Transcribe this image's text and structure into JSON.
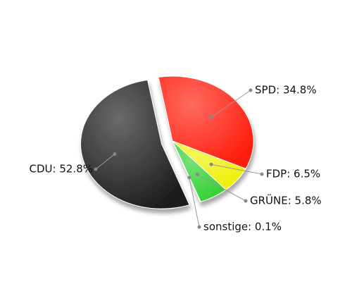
{
  "chart_data": {
    "type": "pie",
    "values": [
      34.8,
      6.5,
      5.8,
      0.1,
      52.8
    ],
    "value_labels": [
      "SPD: 34.8%",
      "FDP: 6.5%",
      "GRÜNE: 5.8%",
      "sonstige: 0.1%",
      "CDU: 52.8%"
    ],
    "colors": [
      "#ff1a0a",
      "#eef000",
      "#2fd02f",
      "#9a9a9a",
      "#1a1a1a"
    ],
    "exploded": [
      false,
      false,
      false,
      false,
      true
    ]
  }
}
